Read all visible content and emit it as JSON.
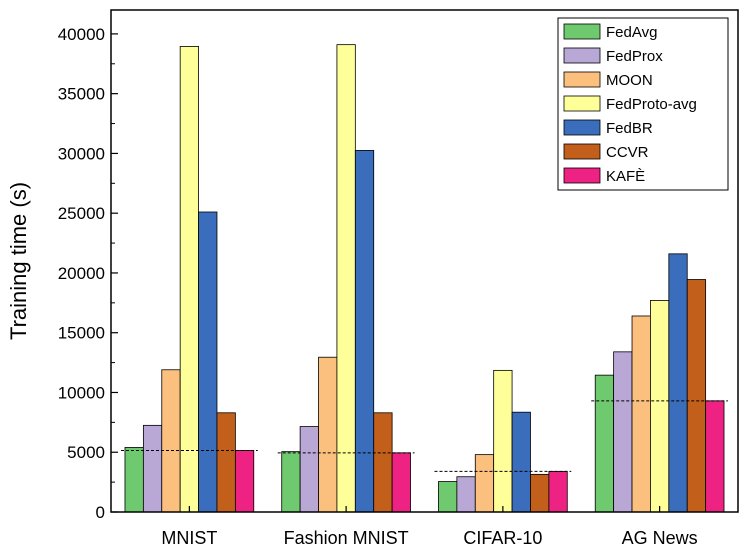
{
  "chart_data": {
    "type": "bar",
    "ylabel": "Training time (s)",
    "xlabel": "",
    "ylim": [
      0,
      42000
    ],
    "yticks": [
      0,
      5000,
      10000,
      15000,
      20000,
      25000,
      30000,
      35000,
      40000
    ],
    "categories": [
      "MNIST",
      "Fashion MNIST",
      "CIFAR-10",
      "AG News"
    ],
    "series": [
      {
        "name": "FedAvg",
        "color": "#6fc96f",
        "values": [
          5400,
          5050,
          2550,
          11450
        ]
      },
      {
        "name": "FedProx",
        "color": "#b9a8d6",
        "values": [
          7250,
          7150,
          2950,
          13400
        ]
      },
      {
        "name": "MOON",
        "color": "#fcc07e",
        "values": [
          11900,
          12950,
          4800,
          16400
        ]
      },
      {
        "name": "FedProto-avg",
        "color": "#ffff99",
        "values": [
          38950,
          39100,
          11850,
          17700
        ]
      },
      {
        "name": "FedBR",
        "color": "#3a6dbb",
        "values": [
          25100,
          30250,
          8350,
          21600
        ]
      },
      {
        "name": "CCVR",
        "color": "#c25f1a",
        "values": [
          8300,
          8300,
          3150,
          19450
        ]
      },
      {
        "name": "KAFÈ",
        "color": "#ee2282",
        "values": [
          5150,
          4950,
          3400,
          9300
        ]
      }
    ],
    "reference_lines": [
      5150,
      4950,
      3400,
      9300
    ],
    "legend_position": "top-right",
    "grid": false
  }
}
